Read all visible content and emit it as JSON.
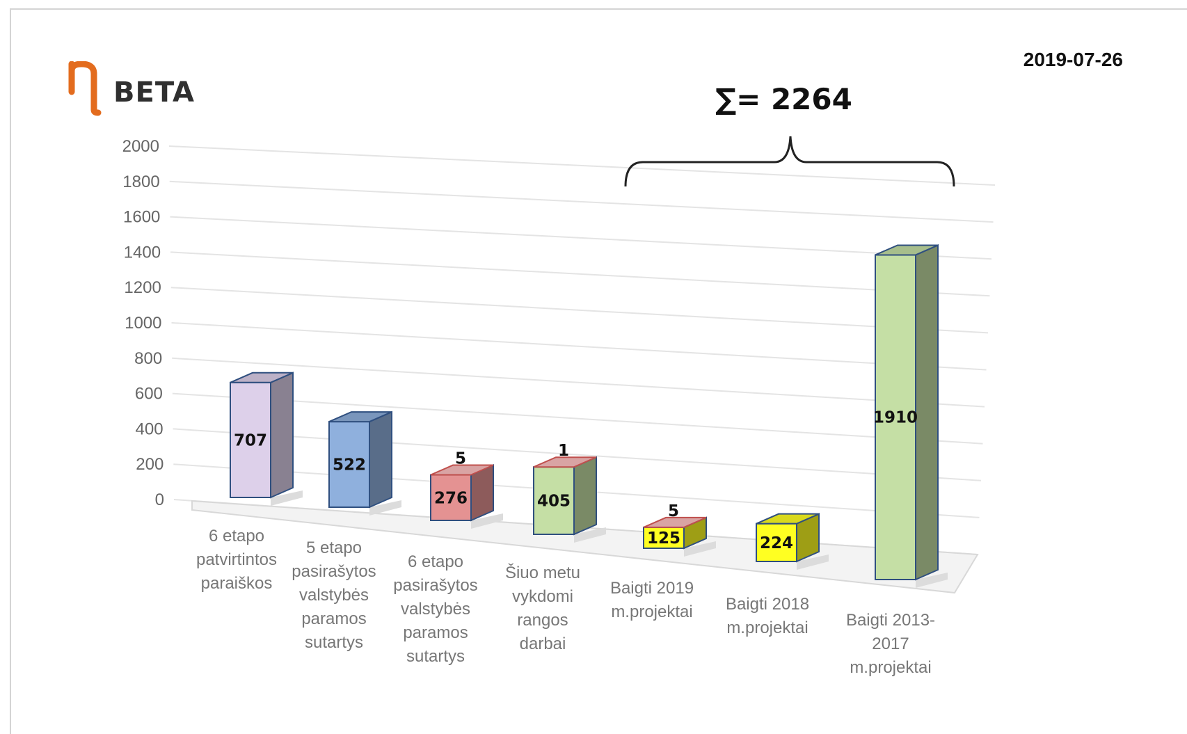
{
  "logo": {
    "text": "BETA",
    "mark_color": "#e36c1e"
  },
  "date": "2019-07-26",
  "sum_label": "∑= 2264",
  "chart_data": {
    "type": "bar",
    "style": "3d",
    "ylim": [
      0,
      2000
    ],
    "yticks": [
      "0",
      "200",
      "400",
      "600",
      "800",
      "1000",
      "1200",
      "1400",
      "1600",
      "1800",
      "2000"
    ],
    "grid": true,
    "categories": [
      [
        "6 etapo",
        "patvirtintos",
        "paraiškos"
      ],
      [
        "5 etapo",
        "pasirašytos",
        "valstybės",
        "paramos",
        "sutartys"
      ],
      [
        "6 etapo",
        "pasirašytos",
        "valstybės",
        "paramos",
        "sutartys"
      ],
      [
        "Šiuo metu",
        "vykdomi",
        "rangos",
        "darbai"
      ],
      [
        "Baigti 2019",
        "m.projektai"
      ],
      [
        "Baigti 2018",
        "m.projektai"
      ],
      [
        "Baigti 2013-",
        "2017",
        "m.projektai"
      ]
    ],
    "bars": [
      {
        "value": 707,
        "label": "707",
        "color": "#ddd0ea"
      },
      {
        "value": 522,
        "label": "522",
        "color": "#8fb0dd"
      },
      {
        "value": 276,
        "label": "276",
        "color": "#e49292",
        "top_value": 5,
        "top_label": "5",
        "top_color": "#d9a4a4"
      },
      {
        "value": 405,
        "label": "405",
        "color": "#c5dfa5",
        "top_value": 1,
        "top_label": "1",
        "top_color": "#d9a4a4"
      },
      {
        "value": 125,
        "label": "125",
        "color": "#ffff22",
        "top_value": 5,
        "top_label": "5",
        "top_color": "#d9a4a4"
      },
      {
        "value": 224,
        "label": "224",
        "color": "#ffff22"
      },
      {
        "value": 1910,
        "label": "1910",
        "color": "#c5dfa5"
      }
    ]
  }
}
